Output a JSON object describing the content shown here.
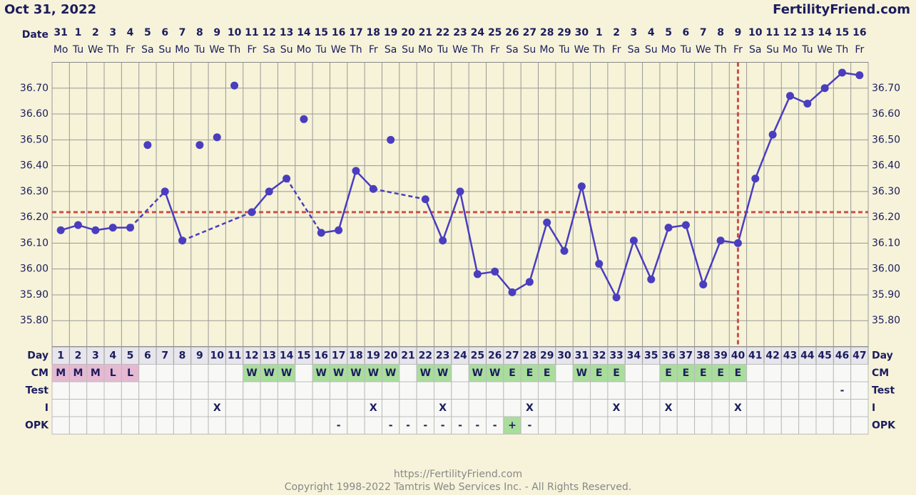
{
  "chart_data": {
    "type": "line",
    "title": "Oct 31, 2022",
    "brand": "FertilityFriend.com",
    "date_label": "Date",
    "dates": [
      31,
      1,
      2,
      3,
      4,
      5,
      6,
      7,
      8,
      9,
      10,
      11,
      12,
      13,
      14,
      15,
      16,
      17,
      18,
      19,
      20,
      21,
      22,
      23,
      24,
      25,
      26,
      27,
      28,
      29,
      30,
      1,
      2,
      3,
      4,
      5,
      6,
      7,
      8,
      9,
      10,
      11,
      12,
      13,
      14,
      15,
      16
    ],
    "weekdays": [
      "Mo",
      "Tu",
      "We",
      "Th",
      "Fr",
      "Sa",
      "Su",
      "Mo",
      "Tu",
      "We",
      "Th",
      "Fr",
      "Sa",
      "Su",
      "Mo",
      "Tu",
      "We",
      "Th",
      "Fr",
      "Sa",
      "Su",
      "Mo",
      "Tu",
      "We",
      "Th",
      "Fr",
      "Sa",
      "Su",
      "Mo",
      "Tu",
      "We",
      "Th",
      "Fr",
      "Sa",
      "Su",
      "Mo",
      "Tu",
      "We",
      "Th",
      "Fr",
      "Sa",
      "Su",
      "Mo",
      "Tu",
      "We",
      "Th",
      "Fr"
    ],
    "values": [
      36.15,
      36.17,
      36.15,
      36.16,
      36.16,
      null,
      36.3,
      36.11,
      null,
      null,
      null,
      36.22,
      36.3,
      36.35,
      null,
      36.14,
      36.15,
      36.38,
      36.31,
      null,
      null,
      36.27,
      36.11,
      36.3,
      35.98,
      35.99,
      35.91,
      35.95,
      36.18,
      36.07,
      36.32,
      36.02,
      35.89,
      36.11,
      35.96,
      36.16,
      36.17,
      35.94,
      36.11,
      36.1,
      36.35,
      36.52,
      36.67,
      36.64,
      36.7,
      36.76,
      36.75
    ],
    "discarded_values": [
      null,
      null,
      null,
      null,
      null,
      36.48,
      null,
      null,
      36.48,
      36.51,
      36.71,
      null,
      null,
      null,
      36.58,
      null,
      null,
      null,
      null,
      36.5,
      null,
      null,
      null,
      null,
      null,
      null,
      null,
      null,
      null,
      null,
      null,
      null,
      null,
      null,
      null,
      null,
      null,
      null,
      null,
      null,
      null,
      null,
      null,
      null,
      null,
      null,
      null
    ],
    "color": "#4a3dbf",
    "coverline": 36.22,
    "ovulation_day": 40,
    "marker_color": "#c9504a",
    "ylim": [
      35.7,
      36.8
    ],
    "yticks": [
      {
        "value": 35.8,
        "label": "35.80"
      },
      {
        "value": 35.9,
        "label": "35.90"
      },
      {
        "value": 36.0,
        "label": "36.00"
      },
      {
        "value": 36.1,
        "label": "36.10"
      },
      {
        "value": 36.2,
        "label": "36.20"
      },
      {
        "value": 36.3,
        "label": "36.30"
      },
      {
        "value": 36.4,
        "label": "36.40"
      },
      {
        "value": 36.5,
        "label": "36.50"
      },
      {
        "value": 36.6,
        "label": "36.60"
      },
      {
        "value": 36.7,
        "label": "36.70"
      }
    ],
    "grid": true,
    "day_row": {
      "label": "Day",
      "values": [
        1,
        2,
        3,
        4,
        5,
        6,
        7,
        8,
        9,
        10,
        11,
        12,
        13,
        14,
        15,
        16,
        17,
        18,
        19,
        20,
        21,
        22,
        23,
        24,
        25,
        26,
        27,
        28,
        29,
        30,
        31,
        32,
        33,
        34,
        35,
        36,
        37,
        38,
        39,
        40,
        41,
        42,
        43,
        44,
        45,
        46,
        47
      ]
    },
    "cell_colors": {
      "M": "#e6b9d2",
      "L": "#e6b9d2",
      "W": "#a9dd9c",
      "E": "#a9dd9c",
      "+": "#a9dd9c"
    },
    "rows": [
      {
        "label": "CM",
        "marks": [
          "M",
          "M",
          "M",
          "L",
          "L",
          null,
          null,
          null,
          null,
          null,
          null,
          "W",
          "W",
          "W",
          null,
          "W",
          "W",
          "W",
          "W",
          "W",
          null,
          "W",
          "W",
          null,
          "W",
          "W",
          "E",
          "E",
          "E",
          null,
          "W",
          "E",
          "E",
          null,
          null,
          "E",
          "E",
          "E",
          "E",
          "E",
          null,
          null,
          null,
          null,
          null,
          null,
          null
        ]
      },
      {
        "label": "Test",
        "marks": [
          null,
          null,
          null,
          null,
          null,
          null,
          null,
          null,
          null,
          null,
          null,
          null,
          null,
          null,
          null,
          null,
          null,
          null,
          null,
          null,
          null,
          null,
          null,
          null,
          null,
          null,
          null,
          null,
          null,
          null,
          null,
          null,
          null,
          null,
          null,
          null,
          null,
          null,
          null,
          null,
          null,
          null,
          null,
          null,
          null,
          "-",
          null
        ]
      },
      {
        "label": "I",
        "marks": [
          null,
          null,
          null,
          null,
          null,
          null,
          null,
          null,
          null,
          "X",
          null,
          null,
          null,
          null,
          null,
          null,
          null,
          null,
          "X",
          null,
          null,
          null,
          "X",
          null,
          null,
          null,
          null,
          "X",
          null,
          null,
          null,
          null,
          "X",
          null,
          null,
          "X",
          null,
          null,
          null,
          "X",
          null,
          null,
          null,
          null,
          null,
          null,
          null
        ]
      },
      {
        "label": "OPK",
        "marks": [
          null,
          null,
          null,
          null,
          null,
          null,
          null,
          null,
          null,
          null,
          null,
          null,
          null,
          null,
          null,
          null,
          "-",
          null,
          null,
          "-",
          "-",
          "-",
          "-",
          "-",
          "-",
          "-",
          "+",
          "-",
          null,
          null,
          null,
          null,
          null,
          null,
          null,
          null,
          null,
          null,
          null,
          null,
          null,
          null,
          null,
          null,
          null,
          null,
          null
        ]
      }
    ],
    "footer": [
      "https://FertilityFriend.com",
      "Copyright 1998-2022 Tamtris Web Services Inc. - All Rights Reserved."
    ]
  }
}
